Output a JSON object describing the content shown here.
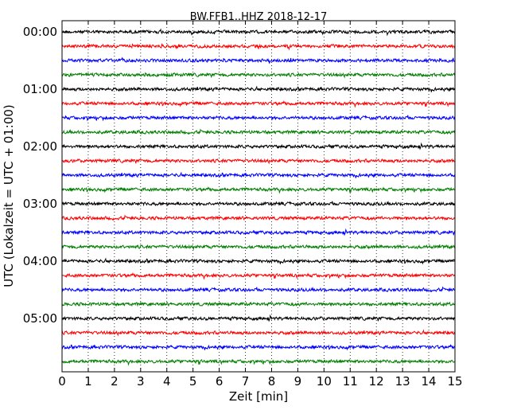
{
  "chart_data": {
    "type": "line",
    "title": "BW.FFB1..HHZ 2018-12-17",
    "xlabel": "Zeit  [min]",
    "ylabel": "UTC (Lokalzeit = UTC + 01:00)",
    "xlim": [
      0,
      15
    ],
    "x_ticks": [
      0,
      1,
      2,
      3,
      4,
      5,
      6,
      7,
      8,
      9,
      10,
      11,
      12,
      13,
      14,
      15
    ],
    "y_tick_labels": [
      "00:00",
      "01:00",
      "02:00",
      "03:00",
      "04:00",
      "05:00"
    ],
    "y_tick_trace_index": [
      0,
      4,
      8,
      12,
      16,
      20
    ],
    "trace_count": 24,
    "trace_minutes": 15,
    "colors": [
      "#000000",
      "#ff0000",
      "#0000ff",
      "#007f00"
    ],
    "vertical_grid": true,
    "grid_style": "dotted"
  }
}
